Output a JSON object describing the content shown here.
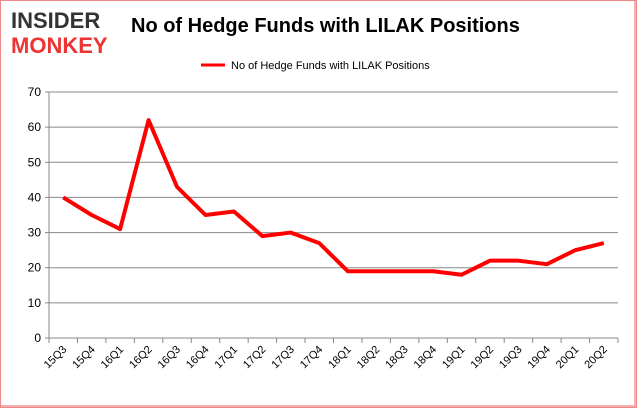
{
  "logo": {
    "line1": "INSIDER",
    "line2": "MONKEY"
  },
  "chart_data": {
    "type": "line",
    "title": "No of Hedge Funds with LILAK Positions",
    "categories": [
      "15Q3",
      "15Q4",
      "16Q1",
      "16Q2",
      "16Q3",
      "16Q4",
      "17Q1",
      "17Q2",
      "17Q3",
      "17Q4",
      "18Q1",
      "18Q2",
      "18Q3",
      "18Q4",
      "19Q1",
      "19Q2",
      "19Q3",
      "19Q4",
      "20Q1",
      "20Q2"
    ],
    "series": [
      {
        "name": "No of Hedge Funds with LILAK Positions",
        "color": "#ff0000",
        "values": [
          40,
          35,
          31,
          62,
          43,
          35,
          36,
          29,
          30,
          27,
          19,
          19,
          19,
          19,
          18,
          22,
          22,
          21,
          25,
          27
        ]
      }
    ],
    "ylim": [
      0,
      70
    ],
    "yticks": [
      0,
      10,
      20,
      30,
      40,
      50,
      60,
      70
    ],
    "xlabel": "",
    "ylabel": "",
    "grid": true,
    "legend": "top-center"
  }
}
